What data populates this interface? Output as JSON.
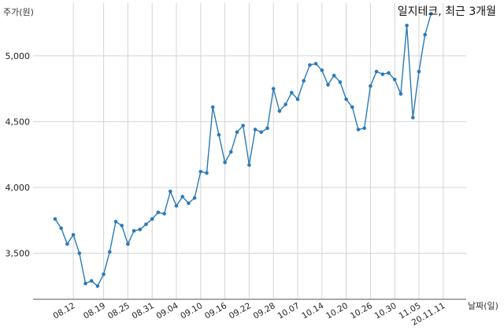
{
  "chart_data": {
    "type": "line",
    "title": "일지테크, 최근 3개월",
    "xlabel": "날짜(일)",
    "ylabel": "주가(원)",
    "ylim": [
      3150,
      5400
    ],
    "yticks": [
      3500,
      4000,
      4500,
      5000
    ],
    "ytick_labels": [
      "3,500",
      "4,000",
      "4,500",
      "5,000"
    ],
    "xtick_labels": [
      "08.12",
      "08.19",
      "08.25",
      "08.31",
      "09.04",
      "09.10",
      "09.16",
      "09.22",
      "09.28",
      "10.07",
      "10.14",
      "10.20",
      "10.26",
      "10.30",
      "11.05",
      "20.11.11"
    ],
    "xtick_indices": [
      3,
      8,
      12,
      16,
      20,
      24,
      28,
      32,
      36,
      40,
      44,
      48,
      52,
      56,
      60,
      64
    ],
    "grid": true,
    "color": "#2a7ab8",
    "series": [
      {
        "values": [
          3760,
          3690,
          3570,
          3640,
          3500,
          3270,
          3290,
          3250,
          3340,
          3510,
          3740,
          3710,
          3570,
          3670,
          3680,
          3720,
          3760,
          3810,
          3800,
          3970,
          3860,
          3930,
          3880,
          3920,
          4120,
          4110,
          4610,
          4400,
          4190,
          4270,
          4420,
          4470,
          4170,
          4440,
          4420,
          4450,
          4750,
          4580,
          4630,
          4720,
          4670,
          4810,
          4930,
          4940,
          4890,
          4780,
          4850,
          4800,
          4670,
          4610,
          4440,
          4450,
          4770,
          4880,
          4860,
          4870,
          4820,
          4710,
          5230,
          4530,
          4880,
          5160,
          5320
        ]
      }
    ]
  }
}
